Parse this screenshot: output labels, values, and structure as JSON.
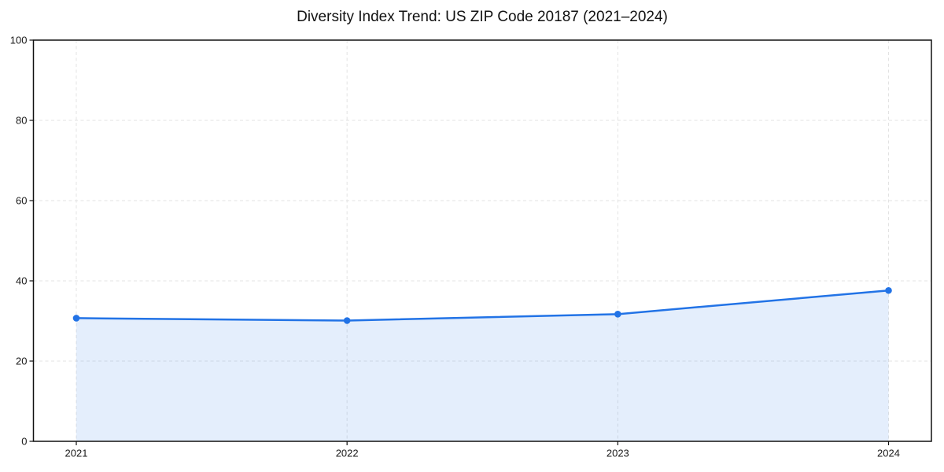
{
  "chart_data": {
    "type": "area",
    "title": "Diversity Index Trend: US ZIP Code 20187 (2021–2024)",
    "categories": [
      "2021",
      "2022",
      "2023",
      "2024"
    ],
    "series": [
      {
        "name": "Diversity Index",
        "values": [
          30.7,
          30.1,
          31.7,
          37.6
        ]
      }
    ],
    "xlabel": "",
    "ylabel": "",
    "ylim": [
      0,
      100
    ],
    "yticks": [
      0,
      20,
      40,
      60,
      80,
      100
    ],
    "grid": true,
    "grid_style": "dashed",
    "legend_position": "none",
    "style": {
      "line_color": "#2273e6",
      "marker_color": "#2273e6",
      "fill_color": "rgba(34, 115, 230, 0.12)",
      "grid_color": "#e3e3e3",
      "spine_color": "#111111",
      "tick_color": "#111111",
      "text_color": "#1a1a1a"
    }
  }
}
